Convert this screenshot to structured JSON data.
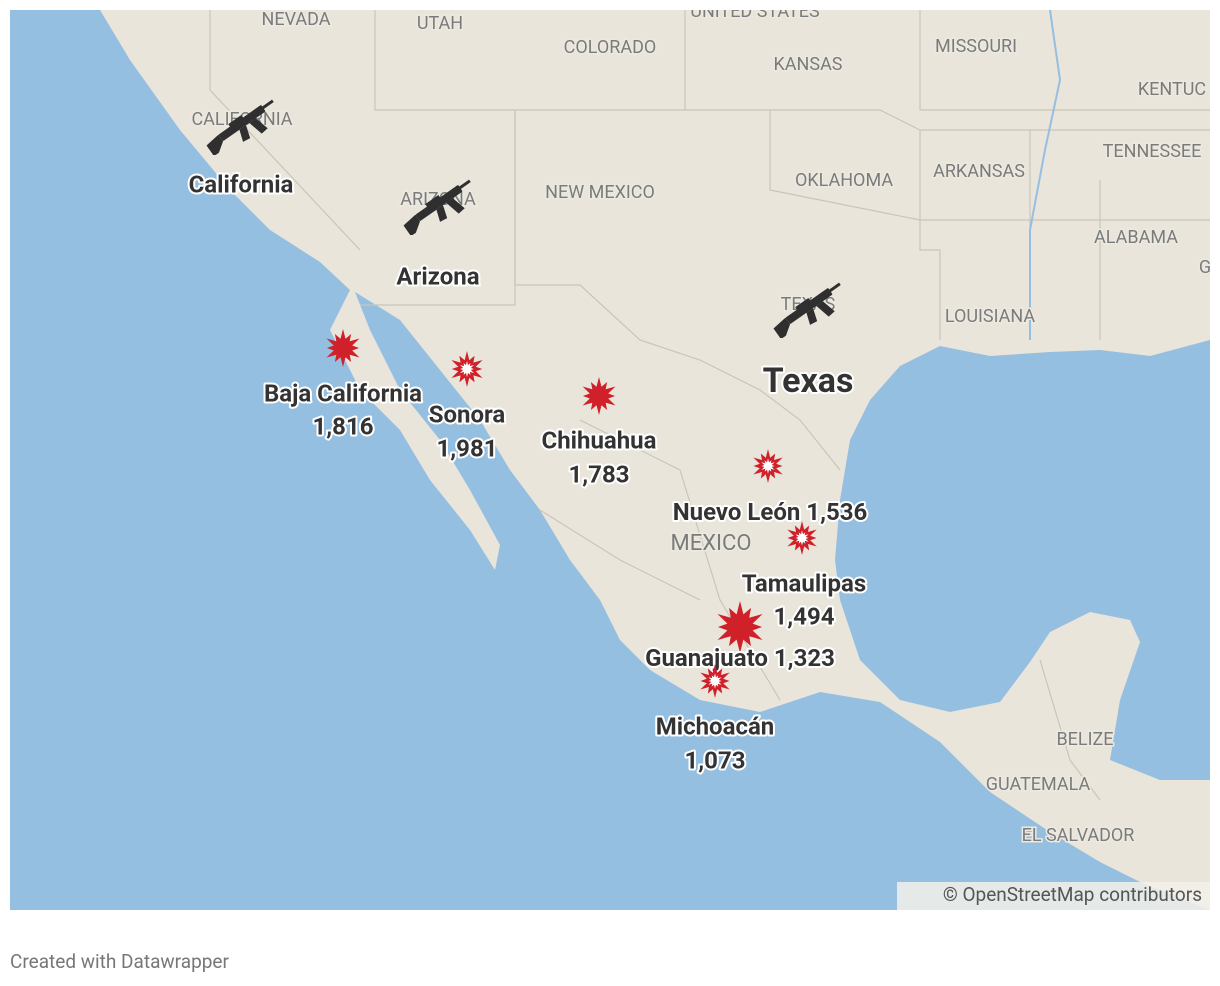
{
  "map": {
    "regions": [
      "NEVADA",
      "UTAH",
      "UNITED STATES",
      "COLORADO",
      "KANSAS",
      "MISSOURI",
      "KENTUC",
      "TENNESSEE",
      "ARKANSAS",
      "OKLAHOMA",
      "NEW MEXICO",
      "CALIFORNIA",
      "ARIZONA",
      "TEXAS",
      "LOUISIANA",
      "ALABAMA",
      "G",
      "MEXICO",
      "BELIZE",
      "GUATEMALA",
      "EL SALVADOR"
    ],
    "gun_states": [
      "California",
      "Arizona",
      "Texas"
    ],
    "markers": [
      {
        "name": "Baja California",
        "value": "1,816"
      },
      {
        "name": "Sonora",
        "value": "1,981"
      },
      {
        "name": "Chihuahua",
        "value": "1,783"
      },
      {
        "name": "Nuevo León",
        "value": "1,536"
      },
      {
        "name": "Tamaulipas",
        "value": "1,494"
      },
      {
        "name": "Guanajuato",
        "value": "1,323"
      },
      {
        "name": "Michoacán",
        "value": "1,073"
      }
    ],
    "attribution": "© OpenStreetMap contributors",
    "footer": "Created with Datawrapper"
  }
}
